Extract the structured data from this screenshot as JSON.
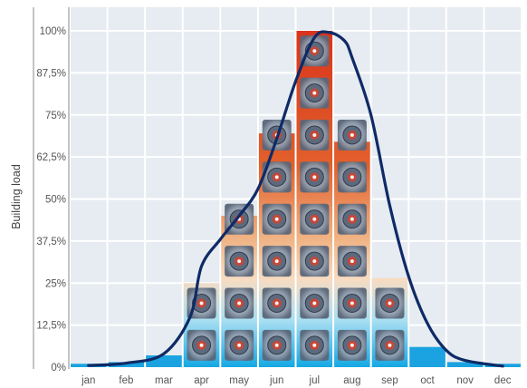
{
  "chart_data": {
    "type": "bar",
    "title": "",
    "xlabel": "",
    "ylabel": "Building load",
    "categories": [
      "jan",
      "feb",
      "mar",
      "apr",
      "may",
      "jun",
      "jul",
      "aug",
      "sep",
      "oct",
      "nov",
      "dec"
    ],
    "values": [
      1,
      1.5,
      3.5,
      25,
      45,
      69.5,
      100,
      67,
      26.5,
      6,
      1.5,
      1
    ],
    "unit_counts": [
      0,
      0,
      0,
      2,
      4,
      6,
      8,
      6,
      2,
      0,
      0,
      0
    ],
    "ylim": [
      0,
      100
    ],
    "yticks": [
      0,
      12.5,
      25,
      37.5,
      50,
      62.5,
      75,
      87.5,
      100
    ],
    "ytick_labels": [
      "0%",
      "12,5%",
      "25%",
      "37,5%",
      "50%",
      "62,5%",
      "75%",
      "87,5%",
      "100%"
    ],
    "curve": {
      "x": [
        0,
        1,
        2,
        2.7,
        3,
        3.5,
        4,
        4.5,
        5,
        5.5,
        6,
        6.4,
        6.8,
        7,
        7.5,
        8,
        8.5,
        9,
        9.5,
        10,
        11
      ],
      "y": [
        0.5,
        1.2,
        4,
        15,
        30,
        38,
        45,
        53,
        68,
        85,
        98,
        99.5,
        97,
        92,
        75,
        48,
        27,
        13,
        5,
        2,
        0.3
      ]
    },
    "grid": true,
    "colors": {
      "plot_background": "#e6ecf1",
      "grid": "#ffffff",
      "curve": "#0f2a66",
      "bar_top": "#e2441f",
      "bar_mid": "#f3c9a6",
      "bar_bottom": "#1aaee6",
      "small_bar": "#1aa3e0",
      "axis": "#8a8a8a"
    }
  }
}
